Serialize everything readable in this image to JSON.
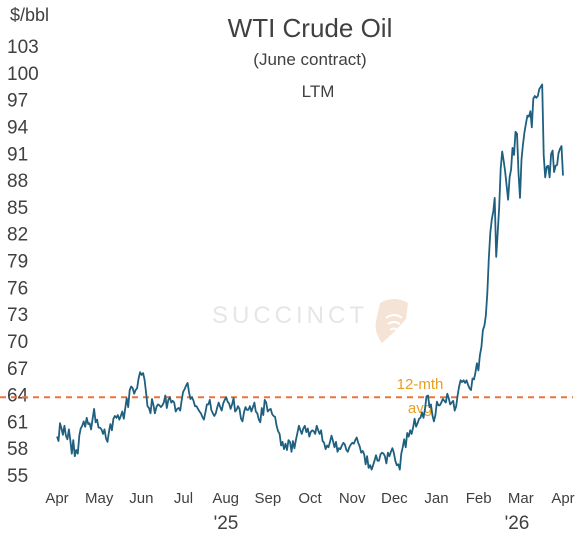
{
  "chart_data": {
    "type": "line",
    "title": "WTI Crude Oil",
    "subtitle": "(June contract)",
    "period_label": "LTM",
    "ylabel": "$/bbl",
    "ylim": [
      55,
      103
    ],
    "yticks": [
      55,
      58,
      61,
      64,
      67,
      70,
      73,
      76,
      79,
      82,
      85,
      88,
      91,
      94,
      97,
      100,
      103
    ],
    "x_month_labels": [
      "Apr",
      "May",
      "Jun",
      "Jul",
      "Aug",
      "Sep",
      "Oct",
      "Nov",
      "Dec",
      "Jan",
      "Feb",
      "Mar",
      "Apr"
    ],
    "x_year_labels": [
      "'25",
      "'26"
    ],
    "watermark": "SUCCINCT",
    "avg_line": {
      "value": 63.7,
      "label_line1": "12-mth",
      "label_line2": "avg",
      "color": "#e8753a",
      "label_color": "#e8a020"
    },
    "line_color": "#1f5f7f",
    "series": [
      {
        "values": [
          59.3,
          58.8,
          60.8,
          60.2,
          59.5,
          60.5,
          59.4,
          59.0,
          60.1,
          58.8,
          57.4,
          58.9,
          57.1,
          57.8,
          57.4,
          59.4,
          60.2,
          60.5,
          61.0,
          60.4,
          61.4,
          60.7,
          60.8,
          60.1,
          61.3,
          62.4,
          60.9,
          61.2,
          60.3,
          60.3,
          60.1,
          59.6,
          60.1,
          59.1,
          58.7,
          59.8,
          60.7,
          60.0,
          61.3,
          61.6,
          61.4,
          61.7,
          61.2,
          61.6,
          62.1,
          61.3,
          62.5,
          63.6,
          62.6,
          64.5,
          64.9,
          64.7,
          64.1,
          64.5,
          64.7,
          65.8,
          66.5,
          66.2,
          66.4,
          65.7,
          64.3,
          62.7,
          62.5,
          61.9,
          63.5,
          62.8,
          61.9,
          62.6,
          62.9,
          62.8,
          62.6,
          62.8,
          63.1,
          63.9,
          62.5,
          63.4,
          63.7,
          63.1,
          63.3,
          63.1,
          62.1,
          62.4,
          62.5,
          62.2,
          63.3,
          64.3,
          64.6,
          65.0,
          65.3,
          64.2,
          63.5,
          63.7,
          63.3,
          62.7,
          62.7,
          62.4,
          62.1,
          61.9,
          61.5,
          61.2,
          62.0,
          62.9,
          62.9,
          63.4,
          62.3,
          61.9,
          61.6,
          61.9,
          62.6,
          63.1,
          62.6,
          62.2,
          63.0,
          63.4,
          63.7,
          63.2,
          63.0,
          62.4,
          62.9,
          63.6,
          62.1,
          62.3,
          62.7,
          62.4,
          61.3,
          61.0,
          62.0,
          62.6,
          62.3,
          62.3,
          62.7,
          62.1,
          62.6,
          63.1,
          62.1,
          61.9,
          61.2,
          60.9,
          62.5,
          61.7,
          63.4,
          63.1,
          62.1,
          62.3,
          62.4,
          61.8,
          61.6,
          61.5,
          60.5,
          59.9,
          59.6,
          58.3,
          58.7,
          57.9,
          58.5,
          57.8,
          58.9,
          58.7,
          57.6,
          58.8,
          58.0,
          58.9,
          59.7,
          60.5,
          60.0,
          59.6,
          60.2,
          60.5,
          59.8,
          60.2,
          59.3,
          59.8,
          60.0,
          59.9,
          59.6,
          60.5,
          60.0,
          59.6,
          60.0,
          58.8,
          58.6,
          57.9,
          58.3,
          58.1,
          58.7,
          59.4,
          58.8,
          58.1,
          58.7,
          57.6,
          58.0,
          57.9,
          58.3,
          58.6,
          58.4,
          57.8,
          57.6,
          58.1,
          58.4,
          58.6,
          58.5,
          58.9,
          59.2,
          58.6,
          58.2,
          57.5,
          57.7,
          57.3,
          56.2,
          57.1,
          55.8,
          56.1,
          55.6,
          56.1,
          56.6,
          57.2,
          56.6,
          56.6,
          57.3,
          57.5,
          57.4,
          57.1,
          56.3,
          57.5,
          57.1,
          57.6,
          58.0,
          57.5,
          56.6,
          56.1,
          56.2,
          55.6,
          57.4,
          58.1,
          59.0,
          58.1,
          59.7,
          59.3,
          60.0,
          59.6,
          60.3,
          61.3,
          60.4,
          60.8,
          61.3,
          61.4,
          62.0,
          61.4,
          62.4,
          63.8,
          63.9,
          62.6,
          62.9,
          61.7,
          61.0,
          61.7,
          63.2,
          62.8,
          62.8,
          63.1,
          63.5,
          63.3,
          63.1,
          64.1,
          63.6,
          62.9,
          63.1,
          63.3,
          62.2,
          62.7,
          63.9,
          64.9,
          65.6,
          65.4,
          65.6,
          65.3,
          65.6,
          65.1,
          64.7,
          64.5,
          65.8,
          65.7,
          66.5,
          67.5,
          66.7,
          68.4,
          69.3,
          71.2,
          71.7,
          72.8,
          75.3,
          79.2,
          82.1,
          83.6,
          84.5,
          86.0,
          79.4,
          82.1,
          85.0,
          89.3,
          91.2,
          90.2,
          89.0,
          87.4,
          85.8,
          88.3,
          89.2,
          91.6,
          90.8,
          93.4,
          93.2,
          88.8,
          86.0,
          90.3,
          91.9,
          93.3,
          94.3,
          95.2,
          95.1,
          95.7,
          93.9,
          97.1,
          97.4,
          97.2,
          97.4,
          98.2,
          98.4,
          98.7,
          90.8,
          88.3,
          89.5,
          89.6,
          88.3,
          90.9,
          91.3,
          88.9,
          89.6,
          89.7,
          91.0,
          91.5,
          91.8,
          88.5
        ]
      }
    ]
  }
}
